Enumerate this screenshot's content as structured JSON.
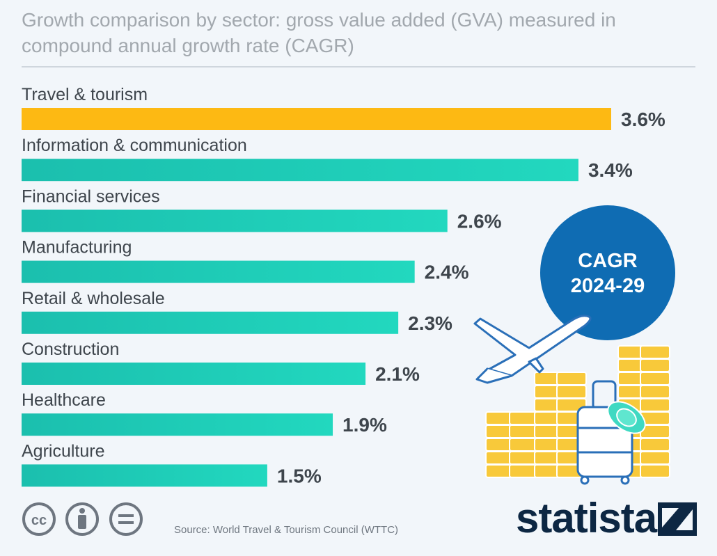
{
  "header": {
    "title": "Growth comparison by sector: gross value added (GVA) measured in compound annual growth rate (CAGR)"
  },
  "chart_data": {
    "type": "bar",
    "orientation": "horizontal",
    "categories": [
      "Travel & tourism",
      "Information & communication",
      "Financial services",
      "Manufacturing",
      "Retail & wholesale",
      "Construction",
      "Healthcare",
      "Agriculture"
    ],
    "values": [
      3.6,
      3.4,
      2.6,
      2.4,
      2.3,
      2.1,
      1.9,
      1.5
    ],
    "value_labels": [
      "3.6%",
      "3.4%",
      "2.6%",
      "2.4%",
      "2.3%",
      "2.1%",
      "1.9%",
      "1.5%"
    ],
    "unit": "%",
    "xlim": [
      0,
      3.6
    ],
    "grid": false,
    "colors": {
      "highlight": "#fdb913",
      "default": "#1ec9b5",
      "default_light": "#24dcbf"
    }
  },
  "badge": {
    "line1": "CAGR",
    "line2": "2024-29",
    "color": "#0f6cb3"
  },
  "footer": {
    "source": "Source: World Travel & Tourism Council (WTTC)",
    "brand": "statista",
    "license_icons": [
      "cc-icon",
      "attribution-icon",
      "no-derivatives-icon"
    ]
  }
}
